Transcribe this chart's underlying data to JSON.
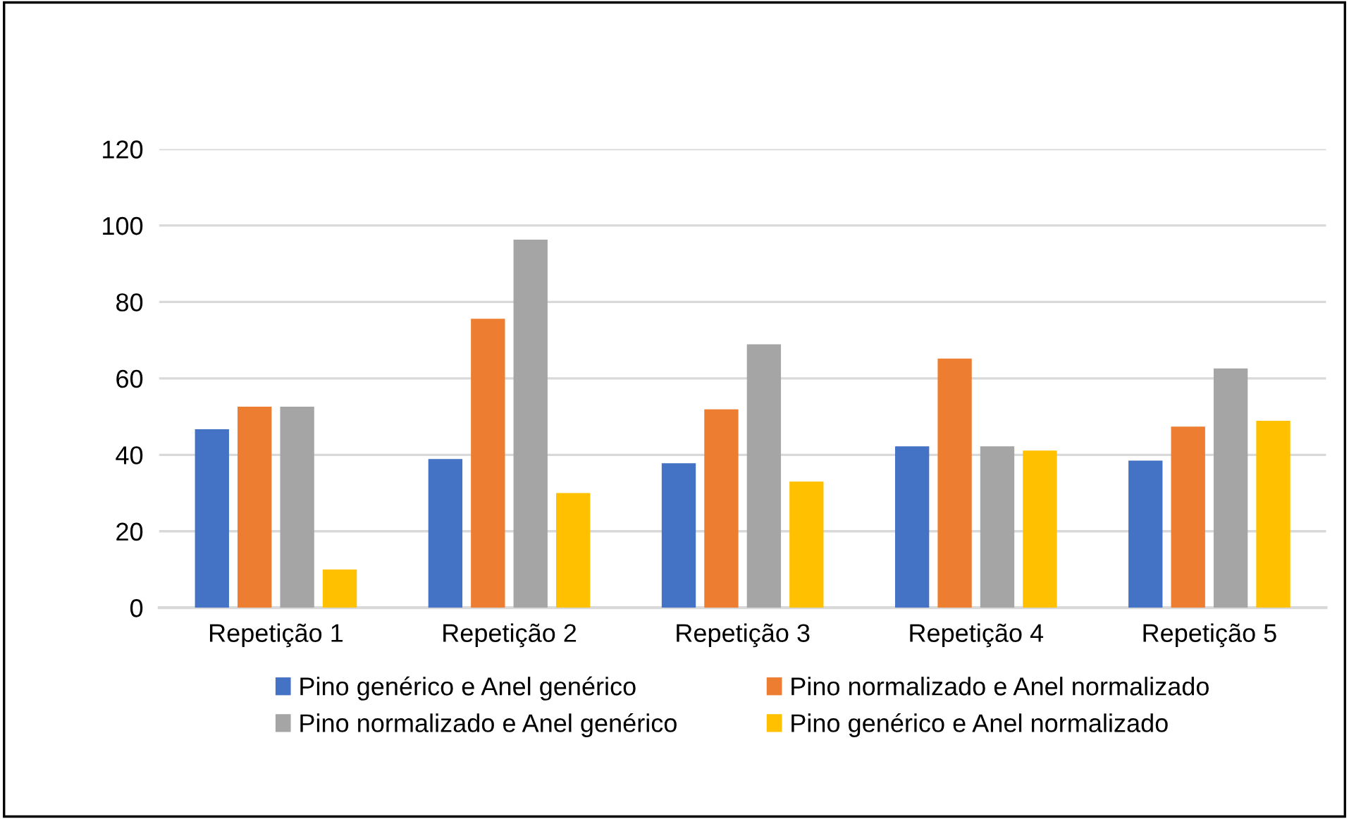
{
  "chart_data": {
    "type": "bar",
    "categories": [
      "Repetição 1",
      "Repetição 2",
      "Repetição 3",
      "Repetição 4",
      "Repetição 5"
    ],
    "series": [
      {
        "name": "Pino genérico e Anel genérico",
        "color": "#4472c4",
        "values": [
          46.7,
          38.9,
          37.8,
          42.2,
          38.5
        ]
      },
      {
        "name": "Pino normalizado e Anel normalizado",
        "color": "#ed7d31",
        "values": [
          52.6,
          75.6,
          51.9,
          65.2,
          47.4
        ]
      },
      {
        "name": "Pino normalizado e Anel genérico",
        "color": "#a5a5a5",
        "values": [
          52.6,
          96.3,
          68.9,
          42.2,
          62.6
        ]
      },
      {
        "name": "Pino genérico e Anel normalizado",
        "color": "#ffc000",
        "values": [
          10,
          30,
          33,
          41.1,
          48.9
        ]
      }
    ],
    "ylim": [
      0,
      120
    ],
    "yticks": [
      0,
      20,
      40,
      60,
      80,
      100,
      120
    ],
    "grid": "y",
    "legend": "bottom"
  }
}
